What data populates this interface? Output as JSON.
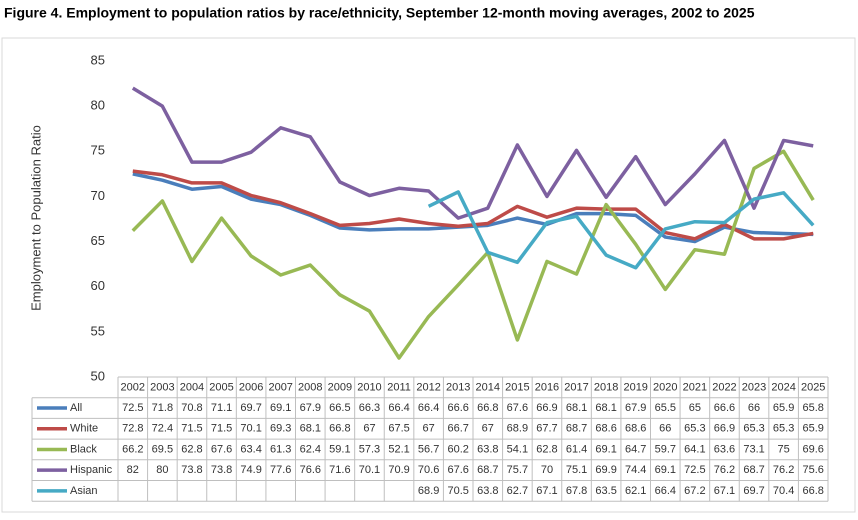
{
  "chart_data": {
    "type": "line",
    "title": "Figure 4. Employment to population ratios by race/ethnicity, September 12-month moving averages, 2002 to 2025",
    "y_label": "Employment to Population Ratio",
    "categories": [
      "2002",
      "2003",
      "2004",
      "2005",
      "2006",
      "2007",
      "2008",
      "2009",
      "2010",
      "2011",
      "2012",
      "2013",
      "2014",
      "2015",
      "2016",
      "2017",
      "2018",
      "2019",
      "2020",
      "2021",
      "2022",
      "2023",
      "2024",
      "2025"
    ],
    "series": [
      {
        "name": "All",
        "color": "#4a7ebb",
        "values": [
          72.5,
          71.8,
          70.8,
          71.1,
          69.7,
          69.1,
          67.9,
          66.5,
          66.3,
          66.4,
          66.4,
          66.6,
          66.8,
          67.6,
          66.9,
          68.1,
          68.1,
          67.9,
          65.5,
          65,
          66.6,
          66,
          65.9,
          65.8
        ]
      },
      {
        "name": "White",
        "color": "#be4b48",
        "values": [
          72.8,
          72.4,
          71.5,
          71.5,
          70.1,
          69.3,
          68.1,
          66.8,
          67,
          67.5,
          67,
          66.7,
          67,
          68.9,
          67.7,
          68.7,
          68.6,
          68.6,
          66,
          65.3,
          66.9,
          65.3,
          65.3,
          65.9
        ]
      },
      {
        "name": "Black",
        "color": "#98b954",
        "values": [
          66.2,
          69.5,
          62.8,
          67.6,
          63.4,
          61.3,
          62.4,
          59.1,
          57.3,
          52.1,
          56.7,
          60.2,
          63.8,
          54.1,
          62.8,
          61.4,
          69.1,
          64.7,
          59.7,
          64.1,
          63.6,
          73.1,
          75,
          69.6
        ]
      },
      {
        "name": "Hispanic",
        "color": "#7d60a0",
        "values": [
          82,
          80,
          73.8,
          73.8,
          74.9,
          77.6,
          76.6,
          71.6,
          70.1,
          70.9,
          70.6,
          67.6,
          68.7,
          75.7,
          70,
          75.1,
          69.9,
          74.4,
          69.1,
          72.5,
          76.2,
          68.7,
          76.2,
          75.6
        ]
      },
      {
        "name": "Asian",
        "color": "#46aac5",
        "values": [
          null,
          null,
          null,
          null,
          null,
          null,
          null,
          null,
          null,
          null,
          68.9,
          70.5,
          63.8,
          62.7,
          67.1,
          67.8,
          63.5,
          62.1,
          66.4,
          67.2,
          67.1,
          69.7,
          70.4,
          66.8
        ]
      }
    ],
    "ylim": [
      50,
      85
    ],
    "yticks": [
      50,
      55,
      60,
      65,
      70,
      75,
      80,
      85
    ],
    "grid": false
  }
}
